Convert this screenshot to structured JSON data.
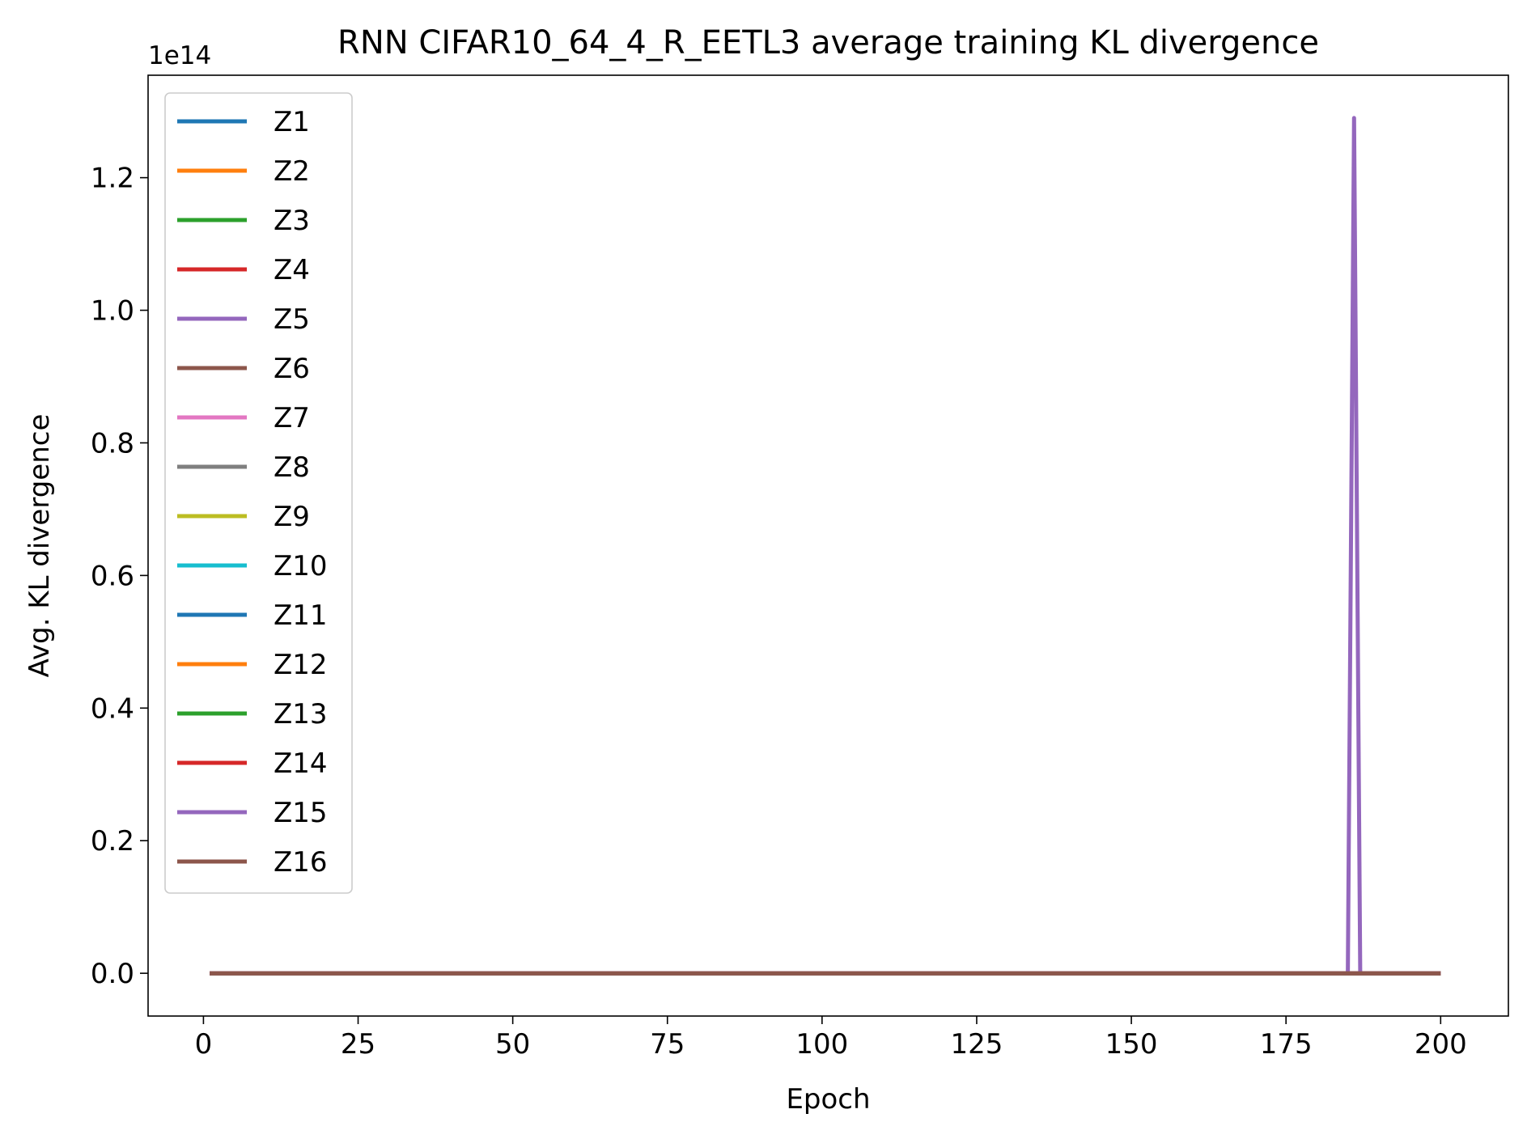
{
  "chart_data": {
    "type": "line",
    "title": "RNN CIFAR10_64_4_R_EETL3 average training KL divergence",
    "xlabel": "Epoch",
    "ylabel": "Avg. KL divergence",
    "y_offset_label": "1e14",
    "xlim": [
      -8.95,
      210.95
    ],
    "ylim": [
      -0.0645,
      1.3545
    ],
    "y_scale_factor": 100000000000000.0,
    "xticks": [
      0,
      25,
      50,
      75,
      100,
      125,
      150,
      175,
      200
    ],
    "xtick_labels": [
      "0",
      "25",
      "50",
      "75",
      "100",
      "125",
      "150",
      "175",
      "200"
    ],
    "yticks": [
      0.0,
      0.2,
      0.4,
      0.6,
      0.8,
      1.0,
      1.2
    ],
    "ytick_labels": [
      "0.0",
      "0.2",
      "0.4",
      "0.6",
      "0.8",
      "1.0",
      "1.2"
    ],
    "grid": false,
    "legend_position": "upper-left",
    "x_range": [
      1,
      200
    ],
    "series": [
      {
        "name": "Z1",
        "color": "#1f77b4",
        "flat_value": 0
      },
      {
        "name": "Z2",
        "color": "#ff7f0e",
        "flat_value": 0
      },
      {
        "name": "Z3",
        "color": "#2ca02c",
        "flat_value": 0
      },
      {
        "name": "Z4",
        "color": "#d62728",
        "flat_value": 0
      },
      {
        "name": "Z5",
        "color": "#9467bd",
        "flat_value": 0,
        "spikes": [
          {
            "x": 186,
            "y": 1.29
          }
        ]
      },
      {
        "name": "Z6",
        "color": "#8c564b",
        "flat_value": 0
      },
      {
        "name": "Z7",
        "color": "#e377c2",
        "flat_value": 0
      },
      {
        "name": "Z8",
        "color": "#7f7f7f",
        "flat_value": 0
      },
      {
        "name": "Z9",
        "color": "#bcbd22",
        "flat_value": 0
      },
      {
        "name": "Z10",
        "color": "#17becf",
        "flat_value": 0
      },
      {
        "name": "Z11",
        "color": "#1f77b4",
        "flat_value": 0
      },
      {
        "name": "Z12",
        "color": "#ff7f0e",
        "flat_value": 0
      },
      {
        "name": "Z13",
        "color": "#2ca02c",
        "flat_value": 0
      },
      {
        "name": "Z14",
        "color": "#d62728",
        "flat_value": 0
      },
      {
        "name": "Z15",
        "color": "#9467bd",
        "flat_value": 0
      },
      {
        "name": "Z16",
        "color": "#8c564b",
        "flat_value": 0
      }
    ]
  }
}
